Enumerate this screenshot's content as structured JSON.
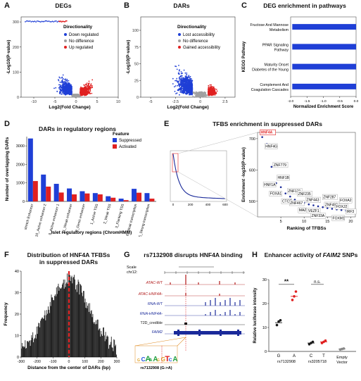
{
  "panels": {
    "A": {
      "letter": "A",
      "title": "DEGs"
    },
    "B": {
      "letter": "B",
      "title": "DARs"
    },
    "C": {
      "letter": "C",
      "title": "DEG enrichment in pathways"
    },
    "D": {
      "letter": "D",
      "title": "DARs in regulatory regions"
    },
    "E": {
      "letter": "E",
      "title": "TFBS enrichment in suppressed DARs"
    },
    "F": {
      "letter": "F",
      "title_line1": "Distribution of HNF4A TFBSs",
      "title_line2": "in suppressed DARs"
    },
    "G": {
      "letter": "G",
      "title": "rs7132908 disrupts HNF4A binding"
    },
    "H": {
      "letter": "H",
      "title_pre": "Enhancer activity of ",
      "title_italic": "FAIM2",
      "title_post": " SNPs"
    }
  },
  "colors": {
    "blue": "#1f3fd6",
    "red": "#e02020",
    "grey": "#a0a0a0",
    "dark_red": "#b01818",
    "navy": "#1a2a9a"
  },
  "chart_data": [
    {
      "id": "A",
      "type": "scatter",
      "title": "DEGs",
      "xlabel": "Log2(Fold Change)",
      "ylabel": "-Log10(P-value)",
      "xlim": [
        -13,
        10
      ],
      "ylim": [
        0,
        320
      ],
      "xticks": [
        -10,
        -5,
        0,
        5,
        10
      ],
      "yticks": [
        0,
        100,
        200,
        300
      ],
      "legend_title": "Directionality",
      "legend_position": "top-right",
      "series": [
        {
          "name": "Down regulated",
          "color": "#1f3fd6"
        },
        {
          "name": "No difference",
          "color": "#a0a0a0"
        },
        {
          "name": "Up regulated",
          "color": "#e02020"
        }
      ]
    },
    {
      "id": "B",
      "type": "scatter",
      "title": "DARs",
      "xlabel": "Log2(Fold Change)",
      "ylabel": "-Log10(P-value)",
      "xlim": [
        -6,
        3.5
      ],
      "ylim": [
        0,
        120
      ],
      "xticks": [
        -5.0,
        -2.5,
        0.0,
        2.5
      ],
      "yticks": [
        0,
        25,
        50,
        75,
        100
      ],
      "legend_title": "Directionality",
      "legend_position": "top-right",
      "series": [
        {
          "name": "Lost accessibility",
          "color": "#1f3fd6"
        },
        {
          "name": "No difference",
          "color": "#a0a0a0"
        },
        {
          "name": "Gained accessibility",
          "color": "#e02020"
        }
      ]
    },
    {
      "id": "C",
      "type": "bar",
      "title": "DEG enrichment in pathways",
      "xlabel": "Normalized Enrichment Score",
      "ylabel": "KEGG Pathway",
      "xlim": [
        -2.0,
        0
      ],
      "xticks": [
        -2.0,
        -1.5,
        -1.0,
        -0.5,
        0.0
      ],
      "categories": [
        {
          "line1": "Fructose And Mannose",
          "line2": "Metabolism"
        },
        {
          "line1": "PPAR Signaling",
          "line2": "Pathway"
        },
        {
          "line1": "Maturity Onset",
          "line2": "Diabetes of the Young"
        },
        {
          "line1": "Complement And",
          "line2": "Coagulation Cascades"
        }
      ],
      "values": [
        -1.95,
        -1.95,
        -1.95,
        -1.95
      ],
      "color": "#1f3fd6"
    },
    {
      "id": "D",
      "type": "bar",
      "title": "DARs in regulatory regions",
      "xlabel": "Islet regulatory regions (ChromHMM)",
      "ylabel": "Number of overlapping DARs",
      "ylim": [
        0,
        3500
      ],
      "yticks": [
        0,
        1000,
        2000,
        3000
      ],
      "legend_title": "Feature",
      "legend_position": "top-right",
      "categories": [
        "stretch Enhancer",
        "10_Active enhancer 2",
        "9_Active enhancer 1",
        "11_Weak enhancer",
        "8_Genic enhancer",
        "1_Active TSS",
        "2_Weak TSS",
        "3_Flanking TSS",
        "6_Weak transcription",
        "5_Strong transcription"
      ],
      "series": [
        {
          "name": "Suppressed",
          "color": "#1f3fd6",
          "values": [
            3400,
            1450,
            950,
            700,
            550,
            450,
            280,
            150,
            680,
            450
          ]
        },
        {
          "name": "Activated",
          "color": "#e02020",
          "values": [
            1100,
            800,
            480,
            380,
            430,
            380,
            200,
            70,
            470,
            150
          ]
        }
      ]
    },
    {
      "id": "E",
      "type": "scatter",
      "title": "TFBS enrichment in suppressed DARs",
      "xlabel": "Ranking of TFBSs",
      "ylabel": "Enrichment -log10(P-value)",
      "xlim": [
        0,
        21
      ],
      "ylim": [
        450,
        720
      ],
      "xticks": [
        5,
        10,
        15,
        20
      ],
      "yticks": [
        500,
        600,
        700
      ],
      "inset_xticks": [
        0,
        200,
        400,
        600
      ],
      "points": [
        {
          "label": "HNF4A",
          "x": 1,
          "y": 705,
          "boxed": true
        },
        {
          "label": "HNF4G",
          "x": 2,
          "y": 683
        },
        {
          "label": "ZNF779",
          "x": 3,
          "y": 610
        },
        {
          "label": "HNF1B",
          "x": 4,
          "y": 558
        },
        {
          "label": "HNF1A",
          "x": 5,
          "y": 545
        },
        {
          "label": "FOXA1",
          "x": 6,
          "y": 525
        },
        {
          "label": "ZNF121",
          "x": 7,
          "y": 515
        },
        {
          "label": "CTCF",
          "x": 8,
          "y": 505
        },
        {
          "label": "ZNF235",
          "x": 9,
          "y": 500
        },
        {
          "label": "ZNF467",
          "x": 10,
          "y": 495
        },
        {
          "label": "MAZ",
          "x": 11,
          "y": 490
        },
        {
          "label": "ZNF443",
          "x": 12,
          "y": 487
        },
        {
          "label": "VEZF1",
          "x": 13,
          "y": 484
        },
        {
          "label": "ZNF33A",
          "x": 14,
          "y": 481
        },
        {
          "label": "ZNF287",
          "x": 15,
          "y": 478
        },
        {
          "label": "ZNF496",
          "x": 16,
          "y": 476
        },
        {
          "label": "FOXM1",
          "x": 17,
          "y": 474
        },
        {
          "label": "FOXA2",
          "x": 18,
          "y": 472
        },
        {
          "label": "FOXJ2",
          "x": 19,
          "y": 470
        },
        {
          "label": "IRF3",
          "x": 20,
          "y": 468
        }
      ]
    },
    {
      "id": "F",
      "type": "bar",
      "title": "Distribution of HNF4A TFBSs in suppressed DARs",
      "xlabel": "Distance from the center of DARs (bp)",
      "ylabel": "Frequency",
      "xlim": [
        -300,
        300
      ],
      "ylim": [
        0,
        40
      ],
      "xticks": [
        -300,
        -200,
        -100,
        0,
        100,
        200,
        300
      ],
      "yticks": [
        0,
        10,
        20,
        30,
        40
      ],
      "color": "#000000"
    },
    {
      "id": "G",
      "type": "table",
      "title": "rs7132908 disrupts HNF4A binding",
      "tracks": [
        {
          "label": "ATAC-WT",
          "color": "#b01818"
        },
        {
          "label": "ATAC-HNF4A-",
          "color": "#b01818"
        },
        {
          "label": "RNA-WT",
          "color": "#1a2a9a"
        },
        {
          "label": "RNA-HNF4A-",
          "color": "#1a2a9a"
        },
        {
          "label": "T2D_credible",
          "color": "#111111"
        },
        {
          "label": "FAIM2",
          "color": "#1a2a9a"
        }
      ],
      "scale_label": "Scale",
      "chrom_label": "chr12:",
      "snp_label": "rs7132908 (G->A)"
    },
    {
      "id": "H",
      "type": "scatter",
      "title": "Enhancer activity of FAIM2 SNPs",
      "ylabel": "Relative luciferase intensity",
      "ylim": [
        0,
        30
      ],
      "yticks": [
        0,
        10,
        20,
        30
      ],
      "groups": [
        {
          "name": "rs7132908",
          "alleles": [
            {
              "label": "G",
              "mean": 12,
              "points": [
                11,
                12.5,
                13
              ],
              "color": "#1a1a1a"
            },
            {
              "label": "A",
              "mean": 23,
              "points": [
                21.5,
                23,
                25
              ],
              "color": "#e02020"
            }
          ]
        },
        {
          "name": "rs3205718",
          "alleles": [
            {
              "label": "C",
              "mean": 3.5,
              "points": [
                3,
                3.5,
                4
              ],
              "color": "#1a1a1a"
            },
            {
              "label": "T",
              "mean": 4,
              "points": [
                3.5,
                4,
                4.5
              ],
              "color": "#e02020"
            }
          ]
        },
        {
          "name": "Empty Vector",
          "alleles": [
            {
              "label": "",
              "mean": 1,
              "points": [
                0.8,
                1,
                1.2
              ],
              "color": "#888888"
            }
          ]
        }
      ],
      "annotations": [
        "**",
        "n.s."
      ]
    }
  ]
}
